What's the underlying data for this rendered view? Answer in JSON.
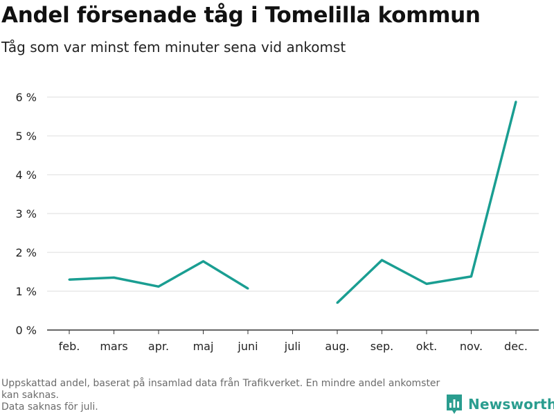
{
  "title": "Andel försenade tåg i Tomelilla kommun",
  "subtitle": "Tåg som var minst fem minuter sena vid ankomst",
  "footnote": {
    "line1": "Uppskattad andel, baserat på insamlad data från Trafikverket. En mindre andel ankomster kan saknas.",
    "line2": "Data saknas för juli."
  },
  "brand": {
    "name": "Newsworthy",
    "icon": "bar-chart-icon",
    "color": "#2a9d8f"
  },
  "colors": {
    "line": "#1a9e92",
    "grid": "#dddddd",
    "axis": "#333333"
  },
  "chart_data": {
    "type": "line",
    "categories": [
      "feb.",
      "mars",
      "apr.",
      "maj",
      "juni",
      "juli",
      "aug.",
      "sep.",
      "okt.",
      "nov.",
      "dec."
    ],
    "series": [
      {
        "values": [
          1.3,
          1.35,
          1.12,
          1.77,
          1.07,
          null,
          0.7,
          1.8,
          1.19,
          1.38,
          5.88
        ]
      }
    ],
    "ylim": [
      0,
      6
    ],
    "yticks": [
      0,
      1,
      2,
      3,
      4,
      5,
      6
    ],
    "ytick_labels": [
      "0 %",
      "1 %",
      "2 %",
      "3 %",
      "4 %",
      "5 %",
      "6 %"
    ],
    "grid": true
  }
}
